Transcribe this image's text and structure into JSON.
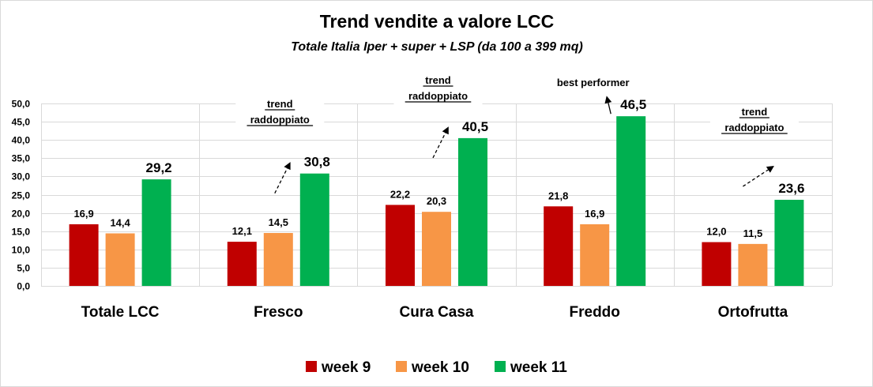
{
  "chart_data": {
    "type": "bar",
    "title": "Trend vendite a valore LCC",
    "subtitle": "Totale  Italia Iper + super + LSP (da 100 a 399 mq)",
    "xlabel": "",
    "ylabel": "",
    "ylim": [
      0,
      50
    ],
    "ytick_step": 5,
    "yticks": [
      "0,0",
      "5,0",
      "10,0",
      "15,0",
      "20,0",
      "25,0",
      "30,0",
      "35,0",
      "40,0",
      "45,0",
      "50,0"
    ],
    "grid": true,
    "legend_position": "bottom",
    "categories": [
      "Totale LCC",
      "Fresco",
      "Cura Casa",
      "Freddo",
      "Ortofrutta"
    ],
    "series": [
      {
        "name": "week 9",
        "color": "#c00000",
        "values": [
          16.9,
          12.1,
          22.2,
          21.8,
          12.0
        ],
        "labels": [
          "16,9",
          "12,1",
          "22,2",
          "21,8",
          "12,0"
        ]
      },
      {
        "name": "week 10",
        "color": "#f79646",
        "values": [
          14.4,
          14.5,
          20.3,
          16.9,
          11.5
        ],
        "labels": [
          "14,4",
          "14,5",
          "20,3",
          "16,9",
          "11,5"
        ]
      },
      {
        "name": "week 11",
        "color": "#00b050",
        "values": [
          29.2,
          30.8,
          40.5,
          46.5,
          23.6
        ],
        "labels": [
          "29,2",
          "30,8",
          "40,5",
          "46,5",
          "23,6"
        ]
      }
    ],
    "annotations": [
      {
        "category": "Fresco",
        "lines": [
          "trend",
          "raddoppiato"
        ],
        "underline": true,
        "arrow": "dashed"
      },
      {
        "category": "Cura Casa",
        "lines": [
          "trend",
          "raddoppiato"
        ],
        "underline": true,
        "arrow": "dashed"
      },
      {
        "category": "Freddo",
        "lines": [
          "best performer"
        ],
        "underline": false,
        "arrow": "solid"
      },
      {
        "category": "Ortofrutta",
        "lines": [
          "trend",
          "raddoppiato"
        ],
        "underline": true,
        "arrow": "dashed"
      }
    ]
  }
}
